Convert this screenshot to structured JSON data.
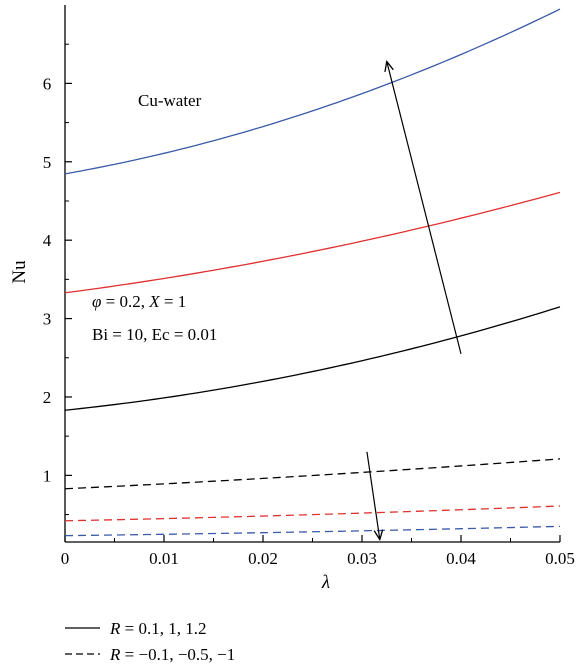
{
  "chart_data": {
    "type": "line",
    "title": "",
    "xlabel": "λ",
    "ylabel": "Nu",
    "xlim": [
      0,
      0.05
    ],
    "ylim": [
      0.15,
      7
    ],
    "x_ticks": [
      0,
      0.01,
      0.02,
      0.03,
      0.04,
      0.05
    ],
    "x_tick_labels": [
      "0",
      "0.01",
      "0.02",
      "0.03",
      "0.04",
      "0.05"
    ],
    "y_ticks": [
      1,
      2,
      3,
      4,
      5,
      6
    ],
    "y_tick_labels": [
      "1",
      "2",
      "3",
      "4",
      "5",
      "6"
    ],
    "grid": false,
    "x": [
      0,
      0.01,
      0.02,
      0.03,
      0.04,
      0.05
    ],
    "series": [
      {
        "values": [
          4.85,
          5.1,
          5.45,
          5.88,
          6.36,
          6.95
        ],
        "color": "#3a5aa8",
        "dash": "solid"
      },
      {
        "values": [
          3.33,
          3.51,
          3.73,
          3.99,
          4.28,
          4.61
        ],
        "color": "#e03030",
        "dash": "solid"
      },
      {
        "values": [
          1.83,
          1.99,
          2.2,
          2.46,
          2.78,
          3.15
        ],
        "color": "#000000",
        "dash": "solid"
      },
      {
        "values": [
          0.83,
          0.89,
          0.96,
          1.04,
          1.12,
          1.21
        ],
        "color": "#000000",
        "dash": "dashed"
      },
      {
        "values": [
          0.42,
          0.45,
          0.48,
          0.52,
          0.56,
          0.61
        ],
        "color": "#e03030",
        "dash": "dashed"
      },
      {
        "values": [
          0.23,
          0.25,
          0.27,
          0.29,
          0.32,
          0.35
        ],
        "color": "#3a5aa8",
        "dash": "dashed"
      }
    ],
    "annotations": {
      "label_fluid": "Cu-water",
      "label_params_1_phi": "φ",
      "label_params_1_rest": " = 0.2, ",
      "label_params_1_X": "X",
      "label_params_1_end": " = 1",
      "label_params_2": "Bi = 10, Ec = 0.01"
    },
    "arrows": [
      {
        "from": [
          0.04,
          2.55
        ],
        "to": [
          0.0325,
          6.28
        ]
      },
      {
        "from": [
          0.0305,
          1.3
        ],
        "to": [
          0.0318,
          0.18
        ]
      }
    ],
    "legend": [
      {
        "symbol": "R",
        "text": " = 0.1, 1, 1.2",
        "dash": "solid"
      },
      {
        "symbol": "R",
        "text": " = −0.1, −0.5, −1",
        "dash": "dashed"
      }
    ],
    "legend_position": "bottom-left"
  }
}
